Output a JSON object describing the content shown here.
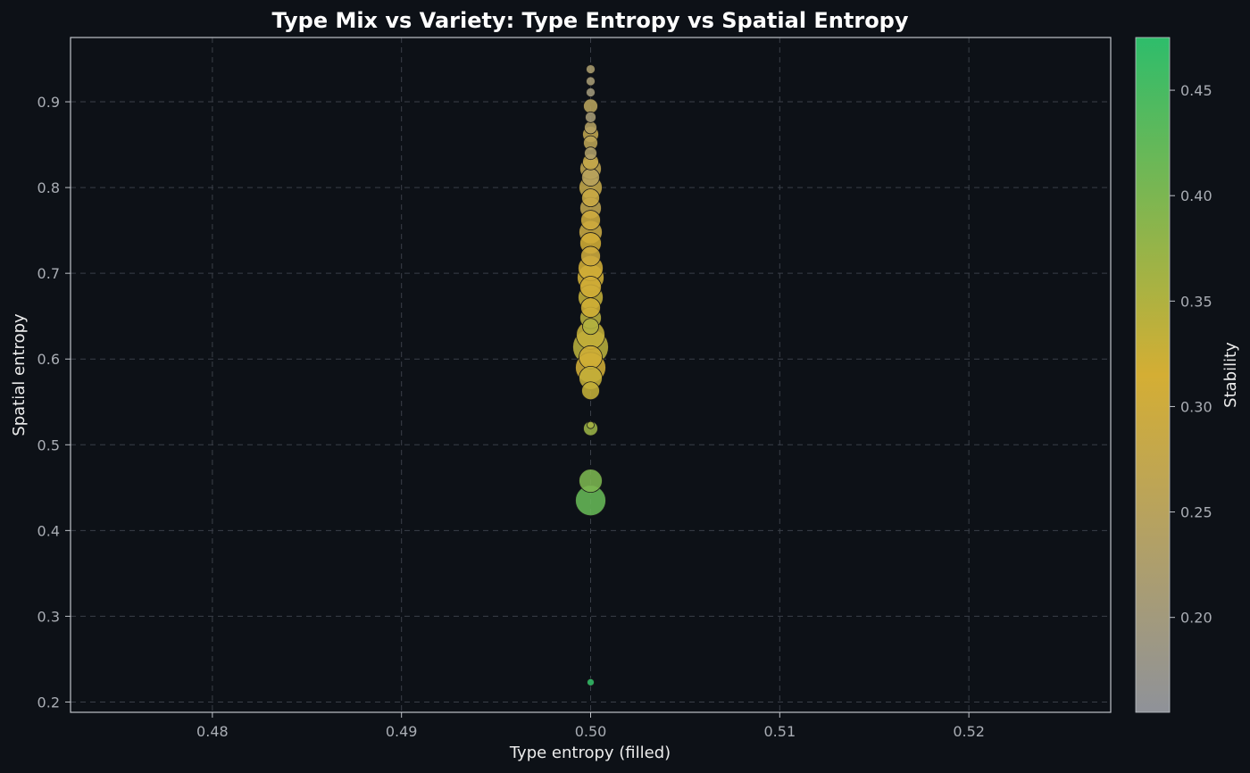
{
  "chart_data": {
    "type": "scatter",
    "title": "Type Mix vs Variety: Type Entropy vs Spatial Entropy",
    "xlabel": "Type entropy (filled)",
    "ylabel": "Spatial entropy",
    "xlim": [
      0.4725,
      0.5275
    ],
    "ylim": [
      0.188,
      0.975
    ],
    "xticks": [
      "0.48",
      "0.49",
      "0.50",
      "0.51",
      "0.52"
    ],
    "yticks": [
      "0.2",
      "0.3",
      "0.4",
      "0.5",
      "0.6",
      "0.7",
      "0.8",
      "0.9"
    ],
    "grid": true,
    "colorbar": {
      "label": "Stability",
      "range": [
        0.155,
        0.475
      ],
      "ticks": [
        "0.20",
        "0.25",
        "0.30",
        "0.35",
        "0.40",
        "0.45"
      ],
      "colors": [
        "#8f9299",
        "#d4ae34",
        "#2ebd6b"
      ]
    },
    "points": [
      {
        "x": 0.5,
        "y": 0.938,
        "size": 5,
        "stability": 0.22
      },
      {
        "x": 0.5,
        "y": 0.924,
        "size": 5,
        "stability": 0.21
      },
      {
        "x": 0.5,
        "y": 0.911,
        "size": 5,
        "stability": 0.2
      },
      {
        "x": 0.5,
        "y": 0.895,
        "size": 8,
        "stability": 0.25
      },
      {
        "x": 0.5,
        "y": 0.882,
        "size": 6,
        "stability": 0.21
      },
      {
        "x": 0.5,
        "y": 0.87,
        "size": 7,
        "stability": 0.24
      },
      {
        "x": 0.5,
        "y": 0.862,
        "size": 9,
        "stability": 0.27
      },
      {
        "x": 0.5,
        "y": 0.852,
        "size": 8,
        "stability": 0.26
      },
      {
        "x": 0.5,
        "y": 0.84,
        "size": 7,
        "stability": 0.23
      },
      {
        "x": 0.5,
        "y": 0.83,
        "size": 9,
        "stability": 0.28
      },
      {
        "x": 0.5,
        "y": 0.822,
        "size": 12,
        "stability": 0.27
      },
      {
        "x": 0.5,
        "y": 0.812,
        "size": 10,
        "stability": 0.25
      },
      {
        "x": 0.5,
        "y": 0.8,
        "size": 13,
        "stability": 0.28
      },
      {
        "x": 0.5,
        "y": 0.788,
        "size": 10,
        "stability": 0.29
      },
      {
        "x": 0.5,
        "y": 0.776,
        "size": 12,
        "stability": 0.27
      },
      {
        "x": 0.5,
        "y": 0.762,
        "size": 11,
        "stability": 0.3
      },
      {
        "x": 0.5,
        "y": 0.748,
        "size": 13,
        "stability": 0.29
      },
      {
        "x": 0.5,
        "y": 0.735,
        "size": 12,
        "stability": 0.31
      },
      {
        "x": 0.5,
        "y": 0.72,
        "size": 11,
        "stability": 0.3
      },
      {
        "x": 0.5,
        "y": 0.706,
        "size": 14,
        "stability": 0.31
      },
      {
        "x": 0.5,
        "y": 0.695,
        "size": 15,
        "stability": 0.32
      },
      {
        "x": 0.5,
        "y": 0.684,
        "size": 12,
        "stability": 0.31
      },
      {
        "x": 0.5,
        "y": 0.672,
        "size": 14,
        "stability": 0.33
      },
      {
        "x": 0.5,
        "y": 0.66,
        "size": 11,
        "stability": 0.32
      },
      {
        "x": 0.5,
        "y": 0.648,
        "size": 12,
        "stability": 0.34
      },
      {
        "x": 0.5,
        "y": 0.638,
        "size": 9,
        "stability": 0.35
      },
      {
        "x": 0.5,
        "y": 0.628,
        "size": 16,
        "stability": 0.33
      },
      {
        "x": 0.5,
        "y": 0.614,
        "size": 20,
        "stability": 0.34
      },
      {
        "x": 0.5,
        "y": 0.602,
        "size": 13,
        "stability": 0.32
      },
      {
        "x": 0.5,
        "y": 0.59,
        "size": 17,
        "stability": 0.31
      },
      {
        "x": 0.5,
        "y": 0.578,
        "size": 13,
        "stability": 0.33
      },
      {
        "x": 0.5,
        "y": 0.563,
        "size": 10,
        "stability": 0.33
      },
      {
        "x": 0.5,
        "y": 0.523,
        "size": 4,
        "stability": 0.36
      },
      {
        "x": 0.5,
        "y": 0.519,
        "size": 8,
        "stability": 0.37
      },
      {
        "x": 0.5,
        "y": 0.458,
        "size": 13,
        "stability": 0.4
      },
      {
        "x": 0.5,
        "y": 0.435,
        "size": 17,
        "stability": 0.42
      },
      {
        "x": 0.5,
        "y": 0.223,
        "size": 4,
        "stability": 0.47
      }
    ]
  }
}
